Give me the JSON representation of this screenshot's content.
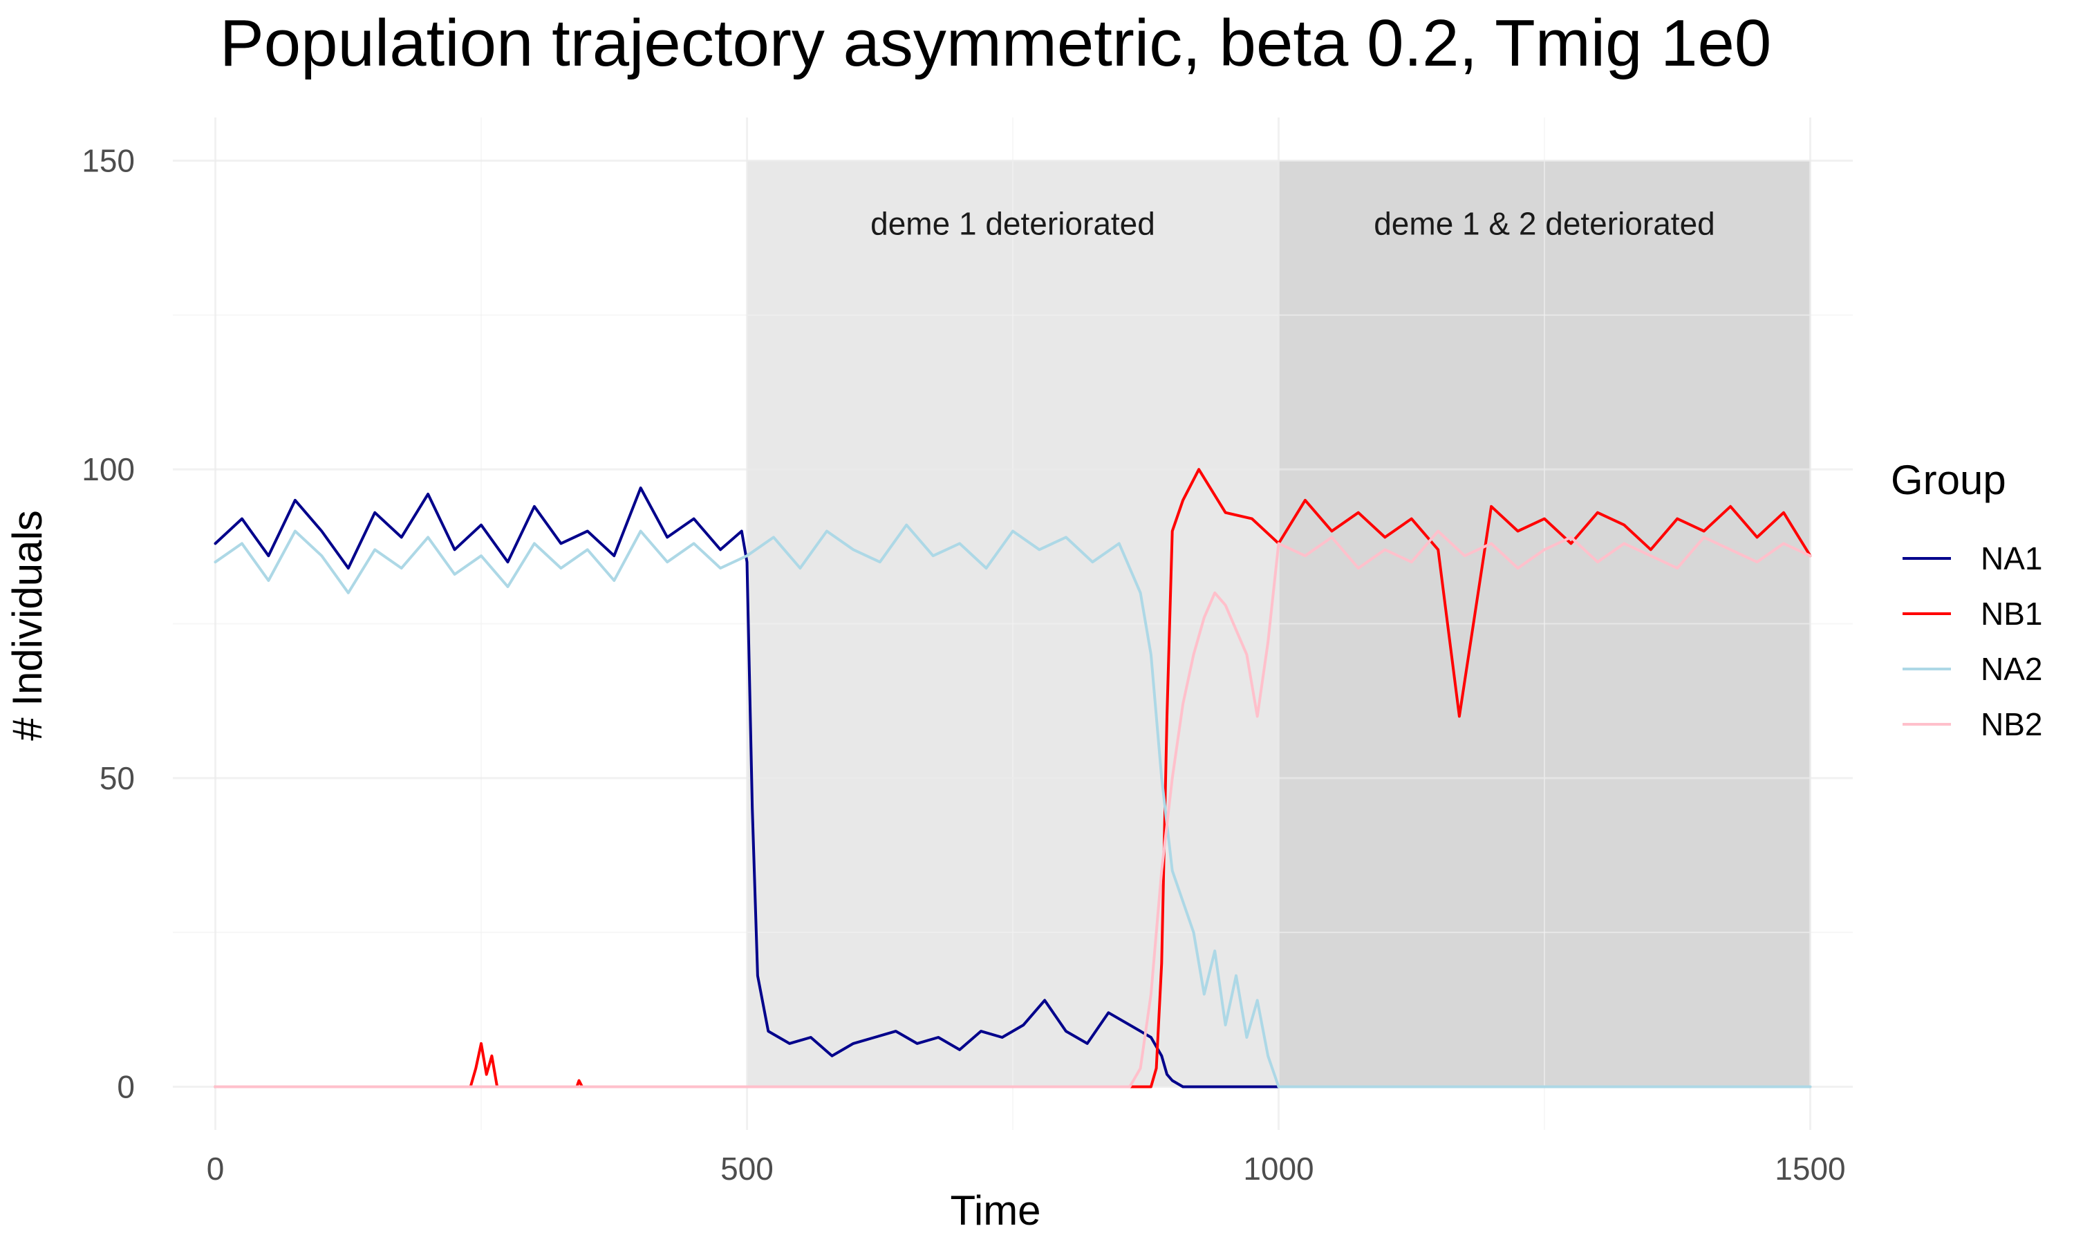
{
  "chart_data": {
    "type": "line",
    "title": "Population trajectory asymmetric, beta 0.2, Tmig 1e0",
    "xlabel": "Time",
    "ylabel": "# Individuals",
    "xlim": [
      -40,
      1540
    ],
    "ylim": [
      -7,
      157
    ],
    "xticks": [
      0,
      500,
      1000,
      1500
    ],
    "xtick_labels": [
      "0",
      "500",
      "1000",
      "1500"
    ],
    "yticks": [
      0,
      50,
      100,
      150
    ],
    "ytick_labels": [
      "0",
      "50",
      "100",
      "150"
    ],
    "grid": true,
    "legend": {
      "title": "Group",
      "position": "right"
    },
    "shaded_regions": [
      {
        "x_start": 500,
        "x_end": 1000,
        "y_start": 0,
        "y_end": 150,
        "label": "deme 1 deteriorated",
        "color": "#e8e8e8"
      },
      {
        "x_start": 1000,
        "x_end": 1500,
        "y_start": 0,
        "y_end": 150,
        "label": "deme 1 & 2 deteriorated",
        "color": "#d7d7d7"
      }
    ],
    "series": [
      {
        "name": "NA1",
        "color": "#00008b",
        "x": [
          0,
          25,
          50,
          75,
          100,
          125,
          150,
          175,
          200,
          225,
          250,
          275,
          300,
          325,
          350,
          375,
          400,
          425,
          450,
          475,
          495,
          500,
          505,
          510,
          520,
          540,
          560,
          580,
          600,
          620,
          640,
          660,
          680,
          700,
          720,
          740,
          760,
          780,
          800,
          820,
          840,
          860,
          880,
          890,
          895,
          900,
          910,
          950,
          1000
        ],
        "y": [
          88,
          92,
          86,
          95,
          90,
          84,
          93,
          89,
          96,
          87,
          91,
          85,
          94,
          88,
          90,
          86,
          97,
          89,
          92,
          87,
          90,
          85,
          45,
          18,
          9,
          7,
          8,
          5,
          7,
          8,
          9,
          7,
          8,
          6,
          9,
          8,
          10,
          14,
          9,
          7,
          12,
          10,
          8,
          5,
          2,
          1,
          0,
          0,
          0
        ]
      },
      {
        "name": "NB1",
        "color": "#ff0000",
        "x": [
          0,
          240,
          245,
          250,
          255,
          260,
          265,
          270,
          340,
          342,
          345,
          880,
          885,
          890,
          895,
          900,
          910,
          925,
          950,
          975,
          1000,
          1025,
          1050,
          1075,
          1100,
          1125,
          1150,
          1170,
          1200,
          1225,
          1250,
          1275,
          1300,
          1325,
          1350,
          1375,
          1400,
          1425,
          1450,
          1475,
          1500
        ],
        "y": [
          0,
          0,
          3,
          7,
          2,
          5,
          0,
          0,
          0,
          1,
          0,
          0,
          3,
          20,
          60,
          90,
          95,
          100,
          93,
          92,
          88,
          95,
          90,
          93,
          89,
          92,
          87,
          60,
          94,
          90,
          92,
          88,
          93,
          91,
          87,
          92,
          90,
          94,
          89,
          93,
          86
        ]
      },
      {
        "name": "NA2",
        "color": "#add8e6",
        "x": [
          0,
          25,
          50,
          75,
          100,
          125,
          150,
          175,
          200,
          225,
          250,
          275,
          300,
          325,
          350,
          375,
          400,
          425,
          450,
          475,
          500,
          525,
          550,
          575,
          600,
          625,
          650,
          675,
          700,
          725,
          750,
          775,
          800,
          825,
          850,
          870,
          880,
          890,
          900,
          910,
          920,
          930,
          940,
          950,
          960,
          970,
          980,
          990,
          1000,
          1250,
          1500
        ],
        "y": [
          85,
          88,
          82,
          90,
          86,
          80,
          87,
          84,
          89,
          83,
          86,
          81,
          88,
          84,
          87,
          82,
          90,
          85,
          88,
          84,
          86,
          89,
          84,
          90,
          87,
          85,
          91,
          86,
          88,
          84,
          90,
          87,
          89,
          85,
          88,
          80,
          70,
          50,
          35,
          30,
          25,
          15,
          22,
          10,
          18,
          8,
          14,
          5,
          0,
          0,
          0
        ]
      },
      {
        "name": "NB2",
        "color": "#ffc0cb",
        "x": [
          0,
          500,
          860,
          870,
          880,
          890,
          900,
          910,
          920,
          930,
          940,
          950,
          960,
          970,
          980,
          990,
          1000,
          1025,
          1050,
          1075,
          1100,
          1125,
          1150,
          1175,
          1200,
          1225,
          1250,
          1275,
          1300,
          1325,
          1350,
          1375,
          1400,
          1425,
          1450,
          1475,
          1500
        ],
        "y": [
          0,
          0,
          0,
          3,
          15,
          35,
          50,
          62,
          70,
          76,
          80,
          78,
          74,
          70,
          60,
          72,
          88,
          86,
          89,
          84,
          87,
          85,
          90,
          86,
          88,
          84,
          87,
          89,
          85,
          88,
          86,
          84,
          89,
          87,
          85,
          88,
          86
        ]
      }
    ]
  }
}
